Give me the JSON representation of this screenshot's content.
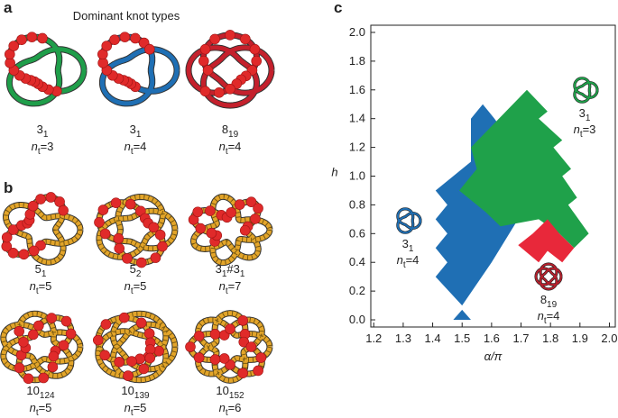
{
  "panel_a": {
    "label": "a",
    "title": "Dominant knot types",
    "knots": [
      {
        "knot": [
          "3",
          "1"
        ],
        "count": [
          "n",
          "t",
          "=3"
        ]
      },
      {
        "knot": [
          "3",
          "1"
        ],
        "count": [
          "n",
          "t",
          "=4"
        ]
      },
      {
        "knot": [
          "8",
          "19"
        ],
        "count": [
          "n",
          "t",
          "=4"
        ]
      }
    ]
  },
  "panel_b": {
    "label": "b",
    "knots": [
      {
        "knot": [
          "5",
          "1"
        ],
        "count": [
          "n",
          "t",
          "=5"
        ]
      },
      {
        "knot": [
          "5",
          "2"
        ],
        "count": [
          "n",
          "t",
          "=5"
        ]
      },
      {
        "knot": [
          "3",
          "1",
          "#3",
          "1"
        ],
        "count": [
          "n",
          "t",
          "=7"
        ]
      },
      {
        "knot": [
          "10",
          "124"
        ],
        "count": [
          "n",
          "t",
          "=5"
        ]
      },
      {
        "knot": [
          "10",
          "139"
        ],
        "count": [
          "n",
          "t",
          "=5"
        ]
      },
      {
        "knot": [
          "10",
          "152"
        ],
        "count": [
          "n",
          "t",
          "=6"
        ]
      }
    ]
  },
  "panel_c": {
    "label": "c"
  },
  "chart_data": {
    "type": "region",
    "xlabel": "α/π",
    "ylabel": "h",
    "xlim": [
      1.19,
      2.02
    ],
    "ylim": [
      -0.05,
      2.05
    ],
    "xticks": [
      1.2,
      1.3,
      1.4,
      1.5,
      1.6,
      1.7,
      1.8,
      1.9,
      {
        "value": 2,
        "label": "2.0"
      }
    ],
    "yticks": [
      {
        "value": 0,
        "label": "0.0"
      },
      0.2,
      0.4,
      0.6,
      0.8,
      {
        "value": 1,
        "label": "1.0"
      },
      1.2,
      1.4,
      1.6,
      1.8,
      {
        "value": 2,
        "label": "2.0"
      }
    ],
    "series": [
      {
        "color": "#1f6fb4",
        "x": [
          1.5,
          1.41,
          1.45,
          1.41,
          1.45,
          1.41,
          1.45,
          1.41,
          1.5,
          1.53,
          1.53,
          1.57,
          1.61,
          1.68,
          1.75,
          1.6
        ],
        "y": [
          0.1,
          0.3,
          0.4,
          0.5,
          0.6,
          0.7,
          0.8,
          0.9,
          1.05,
          1.1,
          1.4,
          1.5,
          1.4,
          1.2,
          0.9,
          0.4
        ]
      },
      {
        "color": "#1f6fb4",
        "x": [
          1.47,
          1.53,
          1.5
        ],
        "y": [
          0,
          0,
          0.07
        ]
      },
      {
        "color": "#1fa14a",
        "x": [
          1.49,
          1.55,
          1.53,
          1.72,
          1.79,
          1.76,
          1.84,
          1.81,
          1.87,
          1.84,
          1.89,
          1.86,
          1.93,
          1.88,
          1.83,
          1.76,
          1.63,
          1.58
        ],
        "y": [
          0.9,
          1.05,
          1.2,
          1.6,
          1.45,
          1.4,
          1.25,
          1.2,
          1.05,
          1.0,
          0.85,
          0.8,
          0.6,
          0.5,
          0.6,
          0.7,
          0.65,
          0.75
        ]
      },
      {
        "color": "#e8283a",
        "x": [
          1.69,
          1.74,
          1.79,
          1.83,
          1.88,
          1.84,
          1.79,
          1.76
        ],
        "y": [
          0.52,
          0.6,
          0.7,
          0.6,
          0.5,
          0.4,
          0.48,
          0.4
        ]
      }
    ],
    "annotations": [
      {
        "knot": [
          "3",
          "1"
        ],
        "count": [
          "n",
          "t",
          "=3"
        ],
        "color": "#1fa14a"
      },
      {
        "knot": [
          "3",
          "1"
        ],
        "count": [
          "n",
          "t",
          "=4"
        ],
        "color": "#1f6fb4"
      },
      {
        "knot": [
          "8",
          "19"
        ],
        "count": [
          "n",
          "t",
          "=4"
        ],
        "color": "#b5202c"
      }
    ]
  }
}
